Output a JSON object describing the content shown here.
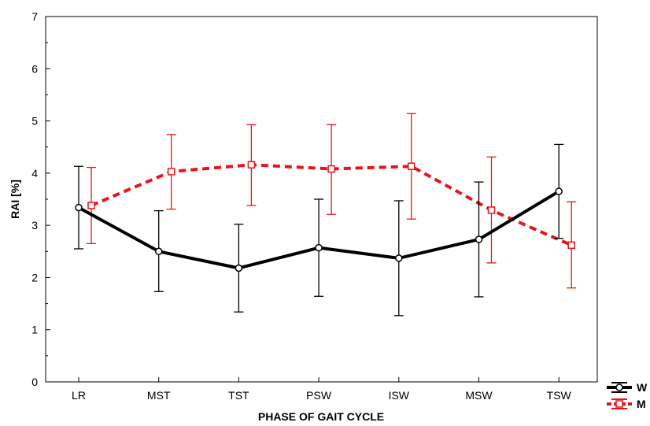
{
  "chart_data": {
    "type": "line",
    "title": "",
    "xlabel": "PHASE OF GAIT CYCLE",
    "ylabel": "RAI [%]",
    "ylim": [
      0,
      7
    ],
    "yticks": [
      0,
      1,
      2,
      3,
      4,
      5,
      6,
      7
    ],
    "categories": [
      "LR",
      "MST",
      "TST",
      "PSW",
      "ISW",
      "MSW",
      "TSW"
    ],
    "grid": false,
    "legend_position": "bottom-right",
    "series": [
      {
        "name": "W",
        "color": "#000000",
        "line_style": "solid",
        "marker": "circle",
        "values": [
          3.34,
          2.5,
          2.18,
          2.57,
          2.37,
          2.73,
          3.65
        ],
        "error_low": [
          2.55,
          1.73,
          1.34,
          1.64,
          1.27,
          1.63,
          2.75
        ],
        "error_high": [
          4.13,
          3.28,
          3.02,
          3.5,
          3.47,
          3.83,
          4.55
        ]
      },
      {
        "name": "M",
        "color": "#e8141b",
        "line_style": "dashed",
        "marker": "square",
        "values": [
          3.38,
          4.03,
          4.16,
          4.08,
          4.13,
          3.29,
          2.62
        ],
        "error_low": [
          2.65,
          3.31,
          3.38,
          3.21,
          3.12,
          2.28,
          1.8
        ],
        "error_high": [
          4.11,
          4.74,
          4.93,
          4.93,
          5.14,
          4.31,
          3.45
        ]
      }
    ]
  }
}
